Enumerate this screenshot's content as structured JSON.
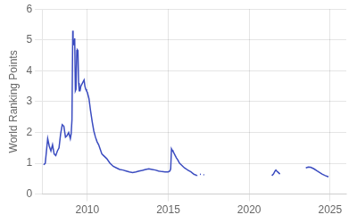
{
  "chart_data": {
    "type": "line",
    "ylabel": "World Ranking Points",
    "color": "#3B4CC0",
    "xlim": [
      2007.2,
      2026.0
    ],
    "xticks": [
      2010,
      2015,
      2020,
      2025
    ],
    "ylim": [
      0,
      6
    ],
    "yticks": [
      0,
      1,
      2,
      3,
      4,
      5,
      6
    ],
    "grid": true,
    "series": [
      {
        "line_style": "solid",
        "x": [
          2007.3,
          2007.4,
          2007.55,
          2007.65,
          2007.75,
          2007.85,
          2007.95,
          2008.05,
          2008.15,
          2008.25,
          2008.35,
          2008.45,
          2008.55,
          2008.65,
          2008.75,
          2008.85,
          2008.95,
          2009.0,
          2009.05,
          2009.1,
          2009.12,
          2009.15,
          2009.18,
          2009.22,
          2009.26,
          2009.3,
          2009.35,
          2009.38,
          2009.42,
          2009.46,
          2009.5,
          2009.55,
          2009.6,
          2009.65,
          2009.7,
          2009.75,
          2009.8,
          2009.85,
          2009.9,
          2009.95,
          2010.0,
          2010.1,
          2010.2,
          2010.3,
          2010.4,
          2010.5,
          2010.6,
          2010.7,
          2010.8,
          2010.9,
          2011.0,
          2011.2,
          2011.4,
          2011.6,
          2011.8,
          2012.0,
          2012.2,
          2012.4,
          2012.6,
          2012.8,
          2013.0,
          2013.2,
          2013.4,
          2013.6,
          2013.8,
          2014.0,
          2014.2,
          2014.4,
          2014.6,
          2014.8,
          2015.0,
          2015.1,
          2015.15,
          2015.2,
          2015.25,
          2015.3,
          2015.4,
          2015.5,
          2015.6,
          2015.7,
          2015.8,
          2015.9,
          2016.0,
          2016.1,
          2016.2,
          2016.3,
          2016.4,
          2016.5,
          2016.6,
          2016.7,
          2016.75
        ],
        "values": [
          0.95,
          1.0,
          1.8,
          1.55,
          1.4,
          1.6,
          1.3,
          1.25,
          1.4,
          1.5,
          1.95,
          2.25,
          2.2,
          1.85,
          1.9,
          2.0,
          1.8,
          1.95,
          2.4,
          5.3,
          5.0,
          4.85,
          4.9,
          5.05,
          3.35,
          3.4,
          4.65,
          4.68,
          4.65,
          3.6,
          3.35,
          3.35,
          3.5,
          3.55,
          3.6,
          3.65,
          3.7,
          3.5,
          3.4,
          3.35,
          3.3,
          3.1,
          2.7,
          2.35,
          2.05,
          1.85,
          1.7,
          1.6,
          1.45,
          1.3,
          1.25,
          1.15,
          1.0,
          0.9,
          0.85,
          0.8,
          0.78,
          0.75,
          0.72,
          0.7,
          0.72,
          0.75,
          0.77,
          0.8,
          0.82,
          0.8,
          0.78,
          0.75,
          0.73,
          0.72,
          0.72,
          0.75,
          0.82,
          1.47,
          1.42,
          1.38,
          1.28,
          1.18,
          1.1,
          1.0,
          0.95,
          0.9,
          0.85,
          0.82,
          0.78,
          0.75,
          0.72,
          0.68,
          0.64,
          0.62,
          0.6
        ]
      },
      {
        "line_style": "dotted",
        "x": [
          2016.75,
          2016.85,
          2016.95,
          2017.05,
          2017.15,
          2017.25,
          2017.35
        ],
        "values": [
          0.6,
          0.62,
          0.64,
          0.65,
          0.63,
          0.62,
          0.61
        ]
      },
      {
        "line_style": "solid",
        "x": [
          2021.4,
          2021.5,
          2021.6,
          2021.65,
          2021.7,
          2021.8,
          2021.9
        ],
        "values": [
          0.6,
          0.65,
          0.75,
          0.78,
          0.75,
          0.7,
          0.65
        ]
      },
      {
        "line_style": "solid",
        "x": [
          2023.5,
          2023.65,
          2023.8,
          2024.0,
          2024.2,
          2024.5,
          2024.7,
          2024.9
        ],
        "values": [
          0.85,
          0.88,
          0.87,
          0.82,
          0.75,
          0.65,
          0.6,
          0.56
        ]
      }
    ]
  }
}
